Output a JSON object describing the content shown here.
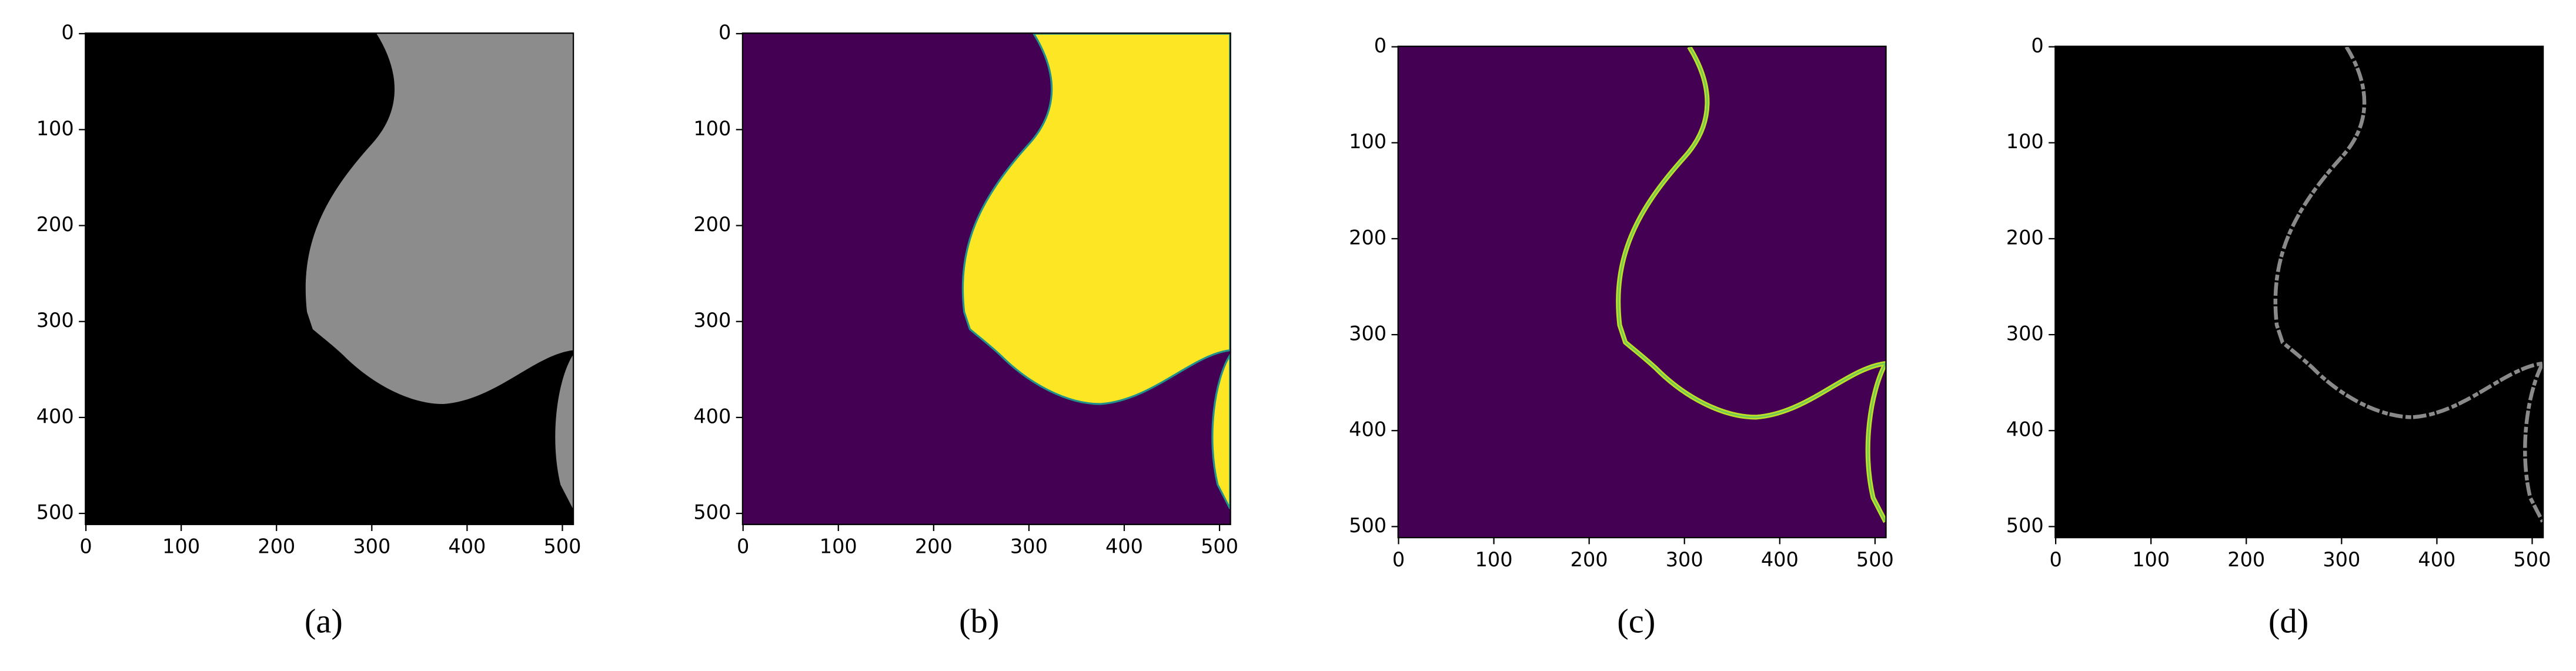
{
  "chart_data": [
    {
      "type": "image",
      "cmap": "gray",
      "caption": "(a)",
      "xlim": [
        -0.5,
        511.5
      ],
      "ylim": [
        511.5,
        -0.5
      ],
      "xticks": [
        0,
        100,
        200,
        300,
        400,
        500
      ],
      "yticks": [
        0,
        100,
        200,
        300,
        400,
        500
      ]
    },
    {
      "type": "image",
      "cmap": "viridis",
      "caption": "(b)",
      "xlim": [
        -0.5,
        511.5
      ],
      "ylim": [
        511.5,
        -0.5
      ],
      "xticks": [
        0,
        100,
        200,
        300,
        400,
        500
      ],
      "yticks": [
        0,
        100,
        200,
        300,
        400,
        500
      ]
    },
    {
      "type": "image",
      "cmap": "viridis",
      "caption": "(c)",
      "xlim": [
        -0.5,
        511.5
      ],
      "ylim": [
        511.5,
        -0.5
      ],
      "xticks": [
        0,
        100,
        200,
        300,
        400,
        500
      ],
      "yticks": [
        0,
        100,
        200,
        300,
        400,
        500
      ]
    },
    {
      "type": "image",
      "cmap": "gray",
      "caption": "(d)",
      "xlim": [
        -0.5,
        511.5
      ],
      "ylim": [
        511.5,
        -0.5
      ],
      "xticks": [
        0,
        100,
        200,
        300,
        400,
        500
      ],
      "yticks": [
        0,
        100,
        200,
        300,
        400,
        500
      ]
    }
  ]
}
